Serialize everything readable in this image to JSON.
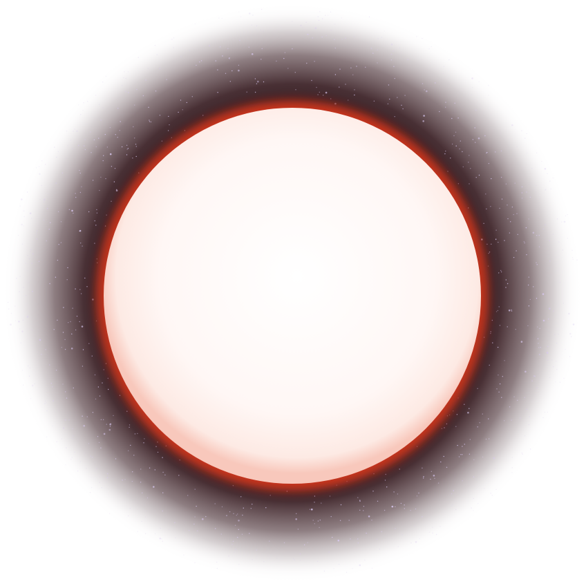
{
  "scene": {
    "subject": "glowing-sphere",
    "colors": {
      "background": "#ffffff",
      "halo_inner": "#3a1d22",
      "halo_mid": "#5a3a40",
      "halo_outer": "#ffffff",
      "rim_red": "#d8301c",
      "rim_orange": "#f06a3a",
      "sphere_core": "#fffafa",
      "sphere_edge": "#fde8e4",
      "star": "#d8c8f0"
    },
    "star_count": 900
  }
}
